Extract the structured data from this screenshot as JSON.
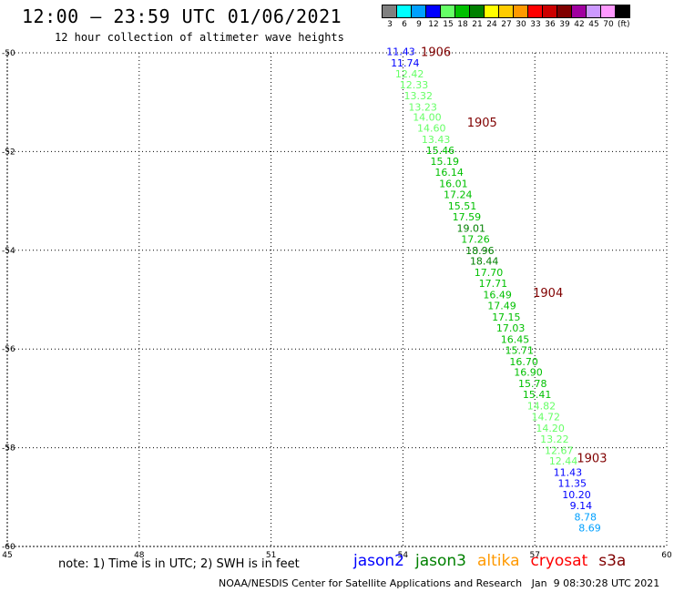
{
  "header": {
    "title": "12:00 – 23:59 UTC 01/06/2021",
    "subtitle": "12 hour collection of altimeter wave heights"
  },
  "colorbar": {
    "unit": "(ft)",
    "cells": [
      {
        "label": "3",
        "color": "#808080"
      },
      {
        "label": "6",
        "color": "#00ffff"
      },
      {
        "label": "9",
        "color": "#00a0ff"
      },
      {
        "label": "12",
        "color": "#0000ff"
      },
      {
        "label": "15",
        "color": "#66ff66"
      },
      {
        "label": "18",
        "color": "#00c000"
      },
      {
        "label": "21",
        "color": "#008000"
      },
      {
        "label": "24",
        "color": "#ffff00"
      },
      {
        "label": "27",
        "color": "#ffcc00"
      },
      {
        "label": "30",
        "color": "#ff9900"
      },
      {
        "label": "33",
        "color": "#ff0000"
      },
      {
        "label": "36",
        "color": "#cc0000"
      },
      {
        "label": "39",
        "color": "#800000"
      },
      {
        "label": "42",
        "color": "#a000a0"
      },
      {
        "label": "45",
        "color": "#cc99ff"
      },
      {
        "label": "70",
        "color": "#ff99ff"
      },
      {
        "label": "",
        "color": "#000000"
      }
    ]
  },
  "chart_data": {
    "type": "scatter",
    "xlim": [
      45,
      60
    ],
    "ylim": [
      -60,
      -50
    ],
    "x_ticks": [
      45,
      48,
      51,
      54,
      57,
      60
    ],
    "y_ticks": [
      -50,
      -52,
      -54,
      -56,
      -58,
      -60
    ],
    "grid": true,
    "points": [
      {
        "lon": 53.95,
        "lat": -49.97,
        "swh": "11.43",
        "color": "#0000ff"
      },
      {
        "lon": 54.05,
        "lat": -50.2,
        "swh": "11.74",
        "color": "#0000ff"
      },
      {
        "lon": 54.15,
        "lat": -50.42,
        "swh": "12.42",
        "color": "#66ff66"
      },
      {
        "lon": 54.25,
        "lat": -50.65,
        "swh": "12.33",
        "color": "#66ff66"
      },
      {
        "lon": 54.35,
        "lat": -50.87,
        "swh": "13.32",
        "color": "#66ff66"
      },
      {
        "lon": 54.45,
        "lat": -51.1,
        "swh": "13.23",
        "color": "#66ff66"
      },
      {
        "lon": 54.55,
        "lat": -51.3,
        "swh": "14.00",
        "color": "#66ff66"
      },
      {
        "lon": 54.65,
        "lat": -51.52,
        "swh": "14.60",
        "color": "#66ff66"
      },
      {
        "lon": 54.75,
        "lat": -51.75,
        "swh": "13.43",
        "color": "#66ff66"
      },
      {
        "lon": 54.85,
        "lat": -51.97,
        "swh": "15.46",
        "color": "#00c000"
      },
      {
        "lon": 54.95,
        "lat": -52.2,
        "swh": "15.19",
        "color": "#00c000"
      },
      {
        "lon": 55.05,
        "lat": -52.42,
        "swh": "16.14",
        "color": "#00c000"
      },
      {
        "lon": 55.15,
        "lat": -52.65,
        "swh": "16.01",
        "color": "#00c000"
      },
      {
        "lon": 55.25,
        "lat": -52.87,
        "swh": "17.24",
        "color": "#00c000"
      },
      {
        "lon": 55.35,
        "lat": -53.1,
        "swh": "15.51",
        "color": "#00c000"
      },
      {
        "lon": 55.45,
        "lat": -53.32,
        "swh": "17.59",
        "color": "#00c000"
      },
      {
        "lon": 55.55,
        "lat": -53.55,
        "swh": "19.01",
        "color": "#008000"
      },
      {
        "lon": 55.65,
        "lat": -53.77,
        "swh": "17.26",
        "color": "#00c000"
      },
      {
        "lon": 55.75,
        "lat": -54.0,
        "swh": "18.96",
        "color": "#008000"
      },
      {
        "lon": 55.85,
        "lat": -54.22,
        "swh": "18.44",
        "color": "#008000"
      },
      {
        "lon": 55.95,
        "lat": -54.45,
        "swh": "17.70",
        "color": "#00c000"
      },
      {
        "lon": 56.05,
        "lat": -54.67,
        "swh": "17.71",
        "color": "#00c000"
      },
      {
        "lon": 56.15,
        "lat": -54.9,
        "swh": "16.49",
        "color": "#00c000"
      },
      {
        "lon": 56.25,
        "lat": -55.12,
        "swh": "17.49",
        "color": "#00c000"
      },
      {
        "lon": 56.35,
        "lat": -55.35,
        "swh": "17.15",
        "color": "#00c000"
      },
      {
        "lon": 56.45,
        "lat": -55.57,
        "swh": "17.03",
        "color": "#00c000"
      },
      {
        "lon": 56.55,
        "lat": -55.8,
        "swh": "16.45",
        "color": "#00c000"
      },
      {
        "lon": 56.65,
        "lat": -56.02,
        "swh": "15.71",
        "color": "#00c000"
      },
      {
        "lon": 56.75,
        "lat": -56.25,
        "swh": "16.70",
        "color": "#00c000"
      },
      {
        "lon": 56.85,
        "lat": -56.47,
        "swh": "16.90",
        "color": "#00c000"
      },
      {
        "lon": 56.95,
        "lat": -56.7,
        "swh": "15.78",
        "color": "#00c000"
      },
      {
        "lon": 57.05,
        "lat": -56.92,
        "swh": "15.41",
        "color": "#00c000"
      },
      {
        "lon": 57.15,
        "lat": -57.15,
        "swh": "14.82",
        "color": "#66ff66"
      },
      {
        "lon": 57.25,
        "lat": -57.37,
        "swh": "14.72",
        "color": "#66ff66"
      },
      {
        "lon": 57.35,
        "lat": -57.6,
        "swh": "14.20",
        "color": "#66ff66"
      },
      {
        "lon": 57.45,
        "lat": -57.82,
        "swh": "13.22",
        "color": "#66ff66"
      },
      {
        "lon": 57.55,
        "lat": -58.05,
        "swh": "12.67",
        "color": "#66ff66"
      },
      {
        "lon": 57.65,
        "lat": -58.27,
        "swh": "12.44",
        "color": "#66ff66"
      },
      {
        "lon": 57.75,
        "lat": -58.5,
        "swh": "11.43",
        "color": "#0000ff"
      },
      {
        "lon": 57.85,
        "lat": -58.72,
        "swh": "11.35",
        "color": "#0000ff"
      },
      {
        "lon": 57.95,
        "lat": -58.95,
        "swh": "10.20",
        "color": "#0000ff"
      },
      {
        "lon": 58.05,
        "lat": -59.17,
        "swh": "9.14",
        "color": "#0000ff"
      },
      {
        "lon": 58.15,
        "lat": -59.4,
        "swh": "8.78",
        "color": "#00a0ff"
      },
      {
        "lon": 58.25,
        "lat": -59.62,
        "swh": "8.69",
        "color": "#00a0ff"
      }
    ],
    "time_labels": [
      {
        "lon": 54.75,
        "lat": -49.97,
        "text": "1906",
        "color": "#800000"
      },
      {
        "lon": 55.8,
        "lat": -51.4,
        "text": "1905",
        "color": "#800000"
      },
      {
        "lon": 57.3,
        "lat": -54.85,
        "text": "1904",
        "color": "#800000"
      },
      {
        "lon": 58.3,
        "lat": -58.2,
        "text": "1903",
        "color": "#800000"
      }
    ]
  },
  "footer": {
    "note": "note: 1) Time is in UTC; 2) SWH is in feet",
    "legend": [
      {
        "label": "jason2",
        "color": "#0000ff"
      },
      {
        "label": "jason3",
        "color": "#008000"
      },
      {
        "label": "altika",
        "color": "#ff9900"
      },
      {
        "label": "cryosat",
        "color": "#ff0000"
      },
      {
        "label": "s3a",
        "color": "#800000"
      }
    ],
    "credit": "NOAA/NESDIS Center for Satellite Applications and Research   Jan  9 08:30:28 UTC 2021"
  }
}
